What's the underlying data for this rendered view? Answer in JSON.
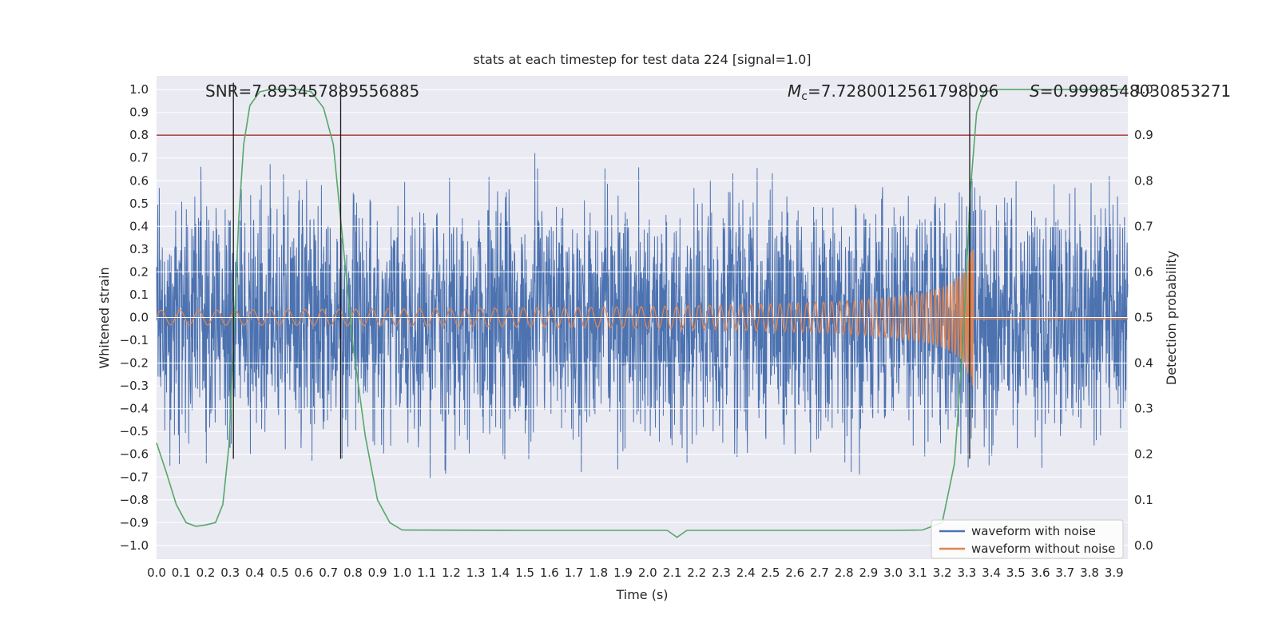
{
  "title": "stats at each timestep for test data 224 [signal=1.0]",
  "colors": {
    "figure_bg": "#ffffff",
    "plot_bg": "#eaeaf2",
    "grid": "#ffffff",
    "text": "#262626",
    "blue": "#4c72b0",
    "orange": "#dd8452",
    "green": "#55a868",
    "threshold_red": "#a02c2c",
    "event_black": "#1a1a1a"
  },
  "axes": {
    "x_label": "Time (s)",
    "y_left_label": "Whitened strain",
    "y_right_label": "Detection probability",
    "xlim": [
      0,
      3.956
    ],
    "ylim_left": [
      -1.06,
      1.06
    ],
    "ylim_right": [
      0,
      1
    ],
    "x_ticks": [
      "0.0",
      "0.1",
      "0.2",
      "0.3",
      "0.4",
      "0.5",
      "0.6",
      "0.7",
      "0.8",
      "0.9",
      "1.0",
      "1.1",
      "1.2",
      "1.3",
      "1.4",
      "1.5",
      "1.6",
      "1.7",
      "1.8",
      "1.9",
      "2.0",
      "2.1",
      "2.2",
      "2.3",
      "2.4",
      "2.5",
      "2.6",
      "2.7",
      "2.8",
      "2.9",
      "3.0",
      "3.1",
      "3.2",
      "3.3",
      "3.4",
      "3.5",
      "3.6",
      "3.7",
      "3.8",
      "3.9"
    ],
    "y_left_ticks": [
      "1.0",
      "0.9",
      "0.8",
      "0.7",
      "0.6",
      "0.5",
      "0.4",
      "0.3",
      "0.2",
      "0.1",
      "0.0",
      "−0.1",
      "−0.2",
      "−0.3",
      "−0.4",
      "−0.5",
      "−0.6",
      "−0.7",
      "−0.8",
      "−0.9",
      "−1.0"
    ],
    "y_right_ticks": [
      "1.0",
      "0.9",
      "0.8",
      "0.7",
      "0.6",
      "0.5",
      "0.4",
      "0.3",
      "0.2",
      "0.1",
      "0.0"
    ]
  },
  "annotations": {
    "snr": {
      "text": "SNR=7.893457889556885",
      "x_data": 0.2
    },
    "mc": {
      "prefix": "M",
      "sub": "c",
      "rest": "=7.7280012561798096",
      "x_data": 2.57
    },
    "s": {
      "prefix": "S",
      "rest": "=0.9998548030853271",
      "x_data": 3.555
    }
  },
  "legend": {
    "items": [
      {
        "label": "waveform with noise",
        "color": "#4c72b0"
      },
      {
        "label": "waveform without noise",
        "color": "#dd8452"
      }
    ]
  },
  "chart_data": {
    "type": "line",
    "title": "stats at each timestep for test data 224 [signal=1.0]",
    "xlabel": "Time (s)",
    "ylabel_left": "Whitened strain",
    "ylabel_right": "Detection probability",
    "xlim": [
      0,
      3.956
    ],
    "ylim_left": [
      -1.06,
      1.06
    ],
    "ylim_right": [
      0,
      1
    ],
    "grid": true,
    "legend_position": "lower right",
    "stats": {
      "SNR": 7.893457889556885,
      "Mc": 7.72800125617981,
      "S": 0.9998548030853271,
      "test_data_index": 224,
      "signal": 1.0
    },
    "threshold_line": {
      "axis": "right",
      "value": 0.9,
      "color": "#a02c2c"
    },
    "event_marker_lines": {
      "x": [
        0.313,
        0.75,
        3.312
      ],
      "color": "#1a1a1a",
      "y_span_left_axis": [
        -0.62,
        1.03
      ]
    },
    "series": [
      {
        "name": "waveform with noise",
        "axis": "left",
        "color": "#4c72b0",
        "kind": "gaussian_noise_plus_chirp",
        "sigma": 0.26,
        "spike_probability": 0.002,
        "n_points": 3200,
        "seed": 20240224
      },
      {
        "name": "waveform without noise",
        "axis": "left",
        "color": "#dd8452",
        "kind": "inspiral_chirp",
        "t_merger": 3.327,
        "amp_start": 0.032,
        "amp_peak": 0.3,
        "amp_exponent": -0.45,
        "f_start_hz": 13,
        "freq_exponent": -0.5,
        "post_merger_value": -0.006
      },
      {
        "name": "detection probability",
        "axis": "right",
        "color": "#55a868",
        "points": [
          [
            0.0,
            0.225
          ],
          [
            0.04,
            0.16
          ],
          [
            0.08,
            0.09
          ],
          [
            0.12,
            0.05
          ],
          [
            0.16,
            0.042
          ],
          [
            0.2,
            0.045
          ],
          [
            0.24,
            0.05
          ],
          [
            0.27,
            0.09
          ],
          [
            0.295,
            0.22
          ],
          [
            0.315,
            0.47
          ],
          [
            0.335,
            0.72
          ],
          [
            0.355,
            0.88
          ],
          [
            0.38,
            0.965
          ],
          [
            0.42,
            0.995
          ],
          [
            0.46,
            1.0
          ],
          [
            0.58,
            1.0
          ],
          [
            0.63,
            0.995
          ],
          [
            0.68,
            0.96
          ],
          [
            0.72,
            0.88
          ],
          [
            0.76,
            0.66
          ],
          [
            0.8,
            0.44
          ],
          [
            0.85,
            0.24
          ],
          [
            0.9,
            0.1
          ],
          [
            0.95,
            0.05
          ],
          [
            1.0,
            0.034
          ],
          [
            1.5,
            0.033
          ],
          [
            2.0,
            0.033
          ],
          [
            2.08,
            0.033
          ],
          [
            2.12,
            0.018
          ],
          [
            2.16,
            0.033
          ],
          [
            2.5,
            0.033
          ],
          [
            3.0,
            0.033
          ],
          [
            3.12,
            0.034
          ],
          [
            3.2,
            0.05
          ],
          [
            3.25,
            0.18
          ],
          [
            3.285,
            0.45
          ],
          [
            3.315,
            0.78
          ],
          [
            3.34,
            0.95
          ],
          [
            3.37,
            0.995
          ],
          [
            3.42,
            1.0
          ],
          [
            3.956,
            1.0
          ]
        ]
      }
    ]
  }
}
